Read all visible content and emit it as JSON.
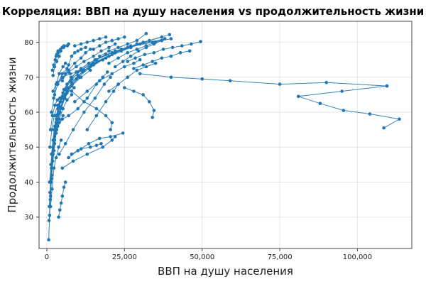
{
  "chart_data": {
    "type": "line",
    "title": "Корреляция: ВВП на душу населения vs продолжительность жизни",
    "xlabel": "ВВП на душу населения",
    "ylabel": "Продолжительность жизни",
    "xlim": [
      -2500,
      117500
    ],
    "ylim": [
      21,
      86
    ],
    "xticks": [
      0,
      25000,
      50000,
      75000,
      100000
    ],
    "xtick_labels": [
      "0",
      "25,000",
      "50,000",
      "75,000",
      "100,000"
    ],
    "yticks": [
      30,
      40,
      50,
      60,
      70,
      80
    ],
    "ytick_labels": [
      "30",
      "40",
      "50",
      "60",
      "70",
      "80"
    ],
    "grid": true,
    "legend": "none",
    "line_color": "#1f77b4",
    "series": [
      {
        "x": [
          600,
          900,
          1200,
          1500,
          1900,
          2500,
          3200,
          4000,
          5200,
          6500,
          8000
        ],
        "y": [
          23.5,
          30.5,
          36,
          41,
          46,
          51,
          55,
          58,
          61,
          63.5,
          65
        ]
      },
      {
        "x": [
          700,
          1100,
          1600,
          2300,
          3200,
          4500,
          6000,
          8200,
          10500
        ],
        "y": [
          29,
          35,
          42,
          49,
          56,
          61,
          65,
          68,
          70
        ]
      },
      {
        "x": [
          800,
          1300,
          2000,
          3000,
          4200,
          5800,
          8000,
          11000,
          14000
        ],
        "y": [
          33,
          40,
          48,
          55,
          60,
          64,
          67.5,
          70,
          72
        ]
      },
      {
        "x": [
          1000,
          1500,
          2200,
          3100,
          4300,
          5900,
          8100,
          11000,
          15000,
          19000
        ],
        "y": [
          37,
          44,
          52,
          58,
          63,
          66.5,
          69.5,
          72,
          74,
          75.5
        ]
      },
      {
        "x": [
          1100,
          1700,
          2600,
          3800,
          5500,
          7800,
          11000,
          15500,
          21000,
          27000
        ],
        "y": [
          40,
          48,
          56,
          62,
          66.5,
          70,
          72.5,
          75,
          77,
          78.5
        ]
      },
      {
        "x": [
          1300,
          2000,
          3000,
          4500,
          6500,
          9500,
          13500,
          19000,
          26000,
          34000,
          40000
        ],
        "y": [
          45,
          52,
          59,
          64,
          68,
          71.5,
          74,
          76.5,
          78.5,
          80,
          81
        ]
      },
      {
        "x": [
          1500,
          2400,
          3600,
          5200,
          7600,
          11000,
          16000,
          22000,
          30000,
          38000
        ],
        "y": [
          48,
          55,
          61,
          65.5,
          69,
          72,
          75,
          77.5,
          79.5,
          81
        ]
      },
      {
        "x": [
          2000,
          3000,
          4500,
          6800,
          10000,
          14500,
          20000,
          27000,
          33000
        ],
        "y": [
          50,
          57,
          63,
          67,
          70.5,
          73.5,
          76,
          78.5,
          80.5
        ]
      },
      {
        "x": [
          2500,
          3800,
          5500,
          8000,
          11500,
          16000,
          22000,
          29000,
          37000
        ],
        "y": [
          53,
          59.5,
          64.5,
          68.5,
          71.5,
          74.5,
          77,
          79.5,
          81.5
        ]
      },
      {
        "x": [
          3000,
          4500,
          6500,
          9500,
          13500,
          18000,
          24000,
          31000,
          39500
        ],
        "y": [
          56,
          61.5,
          66,
          69.5,
          72.5,
          75,
          77.5,
          80,
          82.2
        ]
      },
      {
        "x": [
          1200,
          1800,
          2600,
          3400,
          4200,
          5000
        ],
        "y": [
          55,
          59,
          62,
          63.5,
          64,
          64.5
        ]
      },
      {
        "x": [
          900,
          1400,
          2100,
          3000,
          4000,
          5200
        ],
        "y": [
          40,
          45,
          50,
          54,
          57,
          59
        ]
      },
      {
        "x": [
          1000,
          1600,
          2400,
          3500,
          4800,
          6500,
          8800
        ],
        "y": [
          50,
          55,
          59,
          62,
          64,
          65.5,
          67
        ]
      },
      {
        "x": [
          2000,
          2500,
          3200,
          4000,
          4500,
          5000,
          5500,
          7000
        ],
        "y": [
          70.5,
          73,
          74.5,
          76,
          77.5,
          78.5,
          79,
          79.5
        ]
      },
      {
        "x": [
          3000,
          3600,
          4400,
          5400,
          6600
        ],
        "y": [
          76,
          77,
          78,
          78.5,
          79
        ]
      },
      {
        "x": [
          5000,
          7000,
          9000,
          11000,
          12500,
          14000
        ],
        "y": [
          69,
          72,
          74,
          75.5,
          77,
          78
        ]
      },
      {
        "x": [
          1500,
          2500,
          3500,
          5000,
          6500
        ],
        "y": [
          60,
          65,
          68,
          71,
          72.5
        ]
      },
      {
        "x": [
          1200,
          1700,
          2300,
          3000,
          3800,
          4600
        ],
        "y": [
          33,
          38,
          44,
          47,
          50,
          52
        ]
      },
      {
        "x": [
          3800,
          4200,
          4600,
          5000,
          5500,
          6000
        ],
        "y": [
          30,
          32,
          34,
          36,
          38.5,
          40
        ]
      },
      {
        "x": [
          2500,
          3500,
          5000,
          7000,
          10000,
          13000,
          16000,
          18000,
          19500
        ],
        "y": [
          52,
          56,
          58,
          59,
          61,
          64,
          68,
          70,
          71.5
        ]
      },
      {
        "x": [
          4000,
          6000,
          8500,
          12000,
          15500,
          18500,
          20500
        ],
        "y": [
          48,
          51,
          55,
          60,
          64,
          68,
          70
        ]
      },
      {
        "x": [
          8000,
          11000,
          14000,
          16000,
          17500
        ],
        "y": [
          48,
          49.5,
          50,
          50.5,
          51
        ]
      },
      {
        "x": [
          5000,
          8500,
          13000,
          18000,
          21000,
          22000
        ],
        "y": [
          44,
          46,
          48,
          50,
          52,
          53
        ]
      },
      {
        "x": [
          7000,
          10000,
          13500,
          17000,
          20500,
          24500
        ],
        "y": [
          47,
          49,
          51,
          52.5,
          53,
          54
        ]
      },
      {
        "x": [
          13000,
          16000,
          19000,
          21500,
          23000
        ],
        "y": [
          55,
          59,
          63,
          66,
          68
        ]
      },
      {
        "x": [
          9000,
          13000,
          17000,
          21000,
          25000,
          28000,
          30000
        ],
        "y": [
          63,
          66,
          69,
          71,
          73,
          74,
          75
        ]
      },
      {
        "x": [
          20000,
          23000,
          26000,
          29000,
          32000,
          35000
        ],
        "y": [
          66,
          68,
          70,
          72,
          73,
          74
        ]
      },
      {
        "x": [
          25000,
          28000,
          31000,
          33000,
          34500,
          34000
        ],
        "y": [
          67,
          66,
          65,
          63,
          60.5,
          58.5
        ]
      },
      {
        "x": [
          8000,
          12000,
          16000,
          19000,
          21000,
          20500
        ],
        "y": [
          66,
          63,
          61,
          59,
          57,
          55
        ]
      },
      {
        "x": [
          26000,
          28500,
          31500,
          34500,
          37500,
          40500,
          43500,
          46500,
          49500
        ],
        "y": [
          74.5,
          75.5,
          76.5,
          77,
          78,
          78.5,
          79,
          79.5,
          80.2
        ]
      },
      {
        "x": [
          28000,
          31000,
          34000,
          37000,
          40000,
          43000,
          46000
        ],
        "y": [
          72.5,
          73.5,
          74.5,
          75.5,
          76,
          77,
          77.5
        ]
      },
      {
        "x": [
          6000,
          7000,
          8000,
          9000,
          10000,
          11000,
          12500
        ],
        "y": [
          71,
          73.5,
          76,
          77,
          77.5,
          78,
          78.5
        ]
      },
      {
        "x": [
          3500,
          5000,
          7000,
          9500,
          12000,
          15000,
          17500,
          20000,
          22000
        ],
        "y": [
          68,
          70,
          71.5,
          73,
          74.5,
          76,
          77.5,
          78.5,
          79.5
        ]
      },
      {
        "x": [
          30000,
          40000,
          50000,
          59000,
          75000,
          90000,
          109500
        ],
        "y": [
          71,
          70,
          69.5,
          69,
          68,
          68.5,
          67.5
        ]
      },
      {
        "x": [
          109500,
          95000,
          81000,
          88000,
          95500,
          104000,
          113500,
          108500
        ],
        "y": [
          67.5,
          66,
          64.5,
          62.5,
          60.5,
          59.5,
          58,
          55.5
        ]
      },
      {
        "x": [
          1800,
          2200,
          2700,
          3200,
          3600
        ],
        "y": [
          72,
          73.5,
          75,
          76.5,
          77.5
        ]
      },
      {
        "x": [
          2200,
          3000,
          4000,
          5200,
          6000
        ],
        "y": [
          64,
          68,
          71,
          73,
          74
        ]
      },
      {
        "x": [
          2000,
          3300,
          5000,
          7500,
          10000,
          12000,
          14000
        ],
        "y": [
          66,
          68.5,
          70,
          71,
          71.5,
          72,
          73
        ]
      },
      {
        "x": [
          9000,
          11000,
          13000,
          15000,
          17000,
          19000
        ],
        "y": [
          79,
          79.5,
          80,
          80.5,
          81,
          81.5
        ]
      },
      {
        "x": [
          15000,
          17000,
          19000,
          21000,
          23000,
          25000
        ],
        "y": [
          78,
          79,
          80,
          80.5,
          81,
          81.5
        ]
      },
      {
        "x": [
          17000,
          20000,
          23000,
          26000,
          29000,
          32000
        ],
        "y": [
          76,
          77.5,
          78.5,
          79.5,
          80.5,
          82.5
        ]
      },
      {
        "x": [
          20000,
          23000,
          26000,
          29000,
          32000,
          35000,
          38000
        ],
        "y": [
          74,
          75.5,
          77,
          78,
          79,
          80,
          81
        ]
      },
      {
        "x": [
          22000,
          24500,
          27000,
          29500,
          32000,
          34500,
          37000
        ],
        "y": [
          73,
          74.5,
          76,
          77.5,
          78.5,
          79.5,
          80.5
        ]
      },
      {
        "x": [
          12000,
          15000,
          18000,
          21000,
          24000,
          27000
        ],
        "y": [
          72,
          73.5,
          75,
          76.5,
          78,
          79
        ]
      }
    ]
  }
}
